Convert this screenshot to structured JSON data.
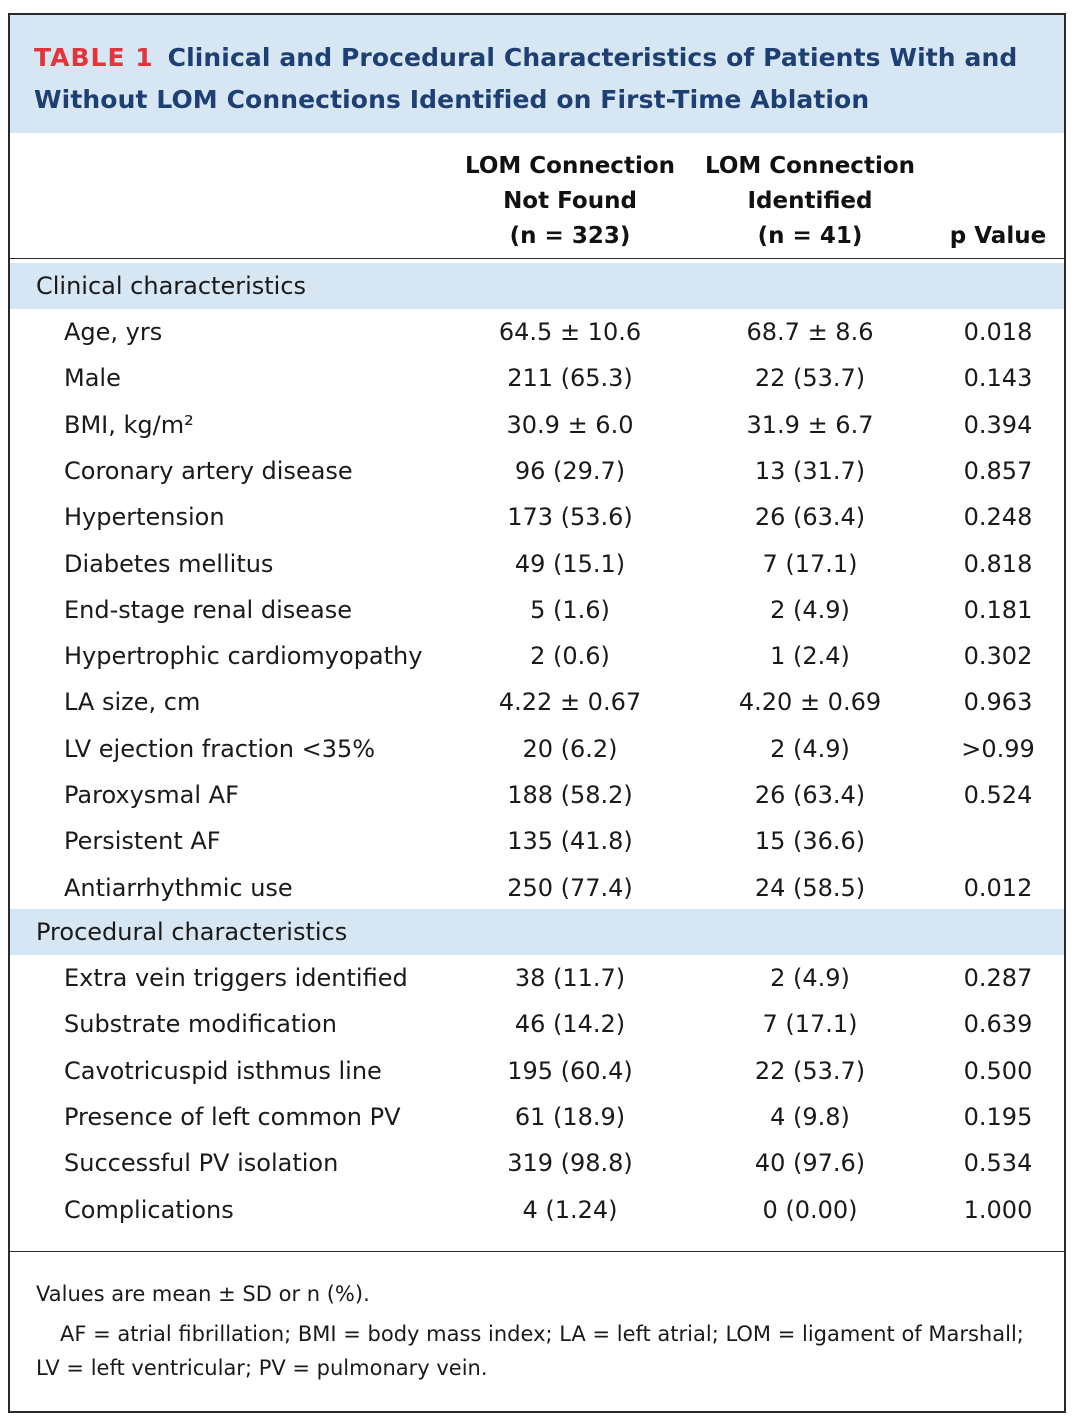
{
  "title": {
    "label": "TABLE 1",
    "text": "Clinical and Procedural Characteristics of Patients With and Without LOM Connections Identified on First-Time Ablation"
  },
  "columns": {
    "not_found": [
      "LOM Connection",
      "Not Found",
      "(n = 323)"
    ],
    "identified": [
      "LOM Connection",
      "Identified",
      "(n = 41)"
    ],
    "p_value": "p Value"
  },
  "sections": [
    {
      "title": "Clinical characteristics",
      "rows": [
        {
          "label": "Age, yrs",
          "not_found": "64.5 ± 10.6",
          "identified": "68.7 ± 8.6",
          "p": "0.018"
        },
        {
          "label": "Male",
          "not_found": "211 (65.3)",
          "identified": "22 (53.7)",
          "p": "0.143"
        },
        {
          "label": "BMI, kg/m²",
          "not_found": "30.9 ± 6.0",
          "identified": "31.9 ± 6.7",
          "p": "0.394"
        },
        {
          "label": "Coronary artery disease",
          "not_found": "96 (29.7)",
          "identified": "13 (31.7)",
          "p": "0.857"
        },
        {
          "label": "Hypertension",
          "not_found": "173 (53.6)",
          "identified": "26 (63.4)",
          "p": "0.248"
        },
        {
          "label": "Diabetes mellitus",
          "not_found": "49 (15.1)",
          "identified": "7 (17.1)",
          "p": "0.818"
        },
        {
          "label": "End-stage renal disease",
          "not_found": "5 (1.6)",
          "identified": "2 (4.9)",
          "p": "0.181"
        },
        {
          "label": "Hypertrophic cardiomyopathy",
          "not_found": "2 (0.6)",
          "identified": "1 (2.4)",
          "p": "0.302"
        },
        {
          "label": "LA size, cm",
          "not_found": "4.22 ± 0.67",
          "identified": "4.20 ± 0.69",
          "p": "0.963"
        },
        {
          "label": "LV ejection fraction <35%",
          "not_found": "20 (6.2)",
          "identified": "2 (4.9)",
          "p": ">0.99"
        },
        {
          "label": "Paroxysmal AF",
          "not_found": "188 (58.2)",
          "identified": "26 (63.4)",
          "p": "0.524"
        },
        {
          "label": "Persistent AF",
          "not_found": "135 (41.8)",
          "identified": "15 (36.6)",
          "p": ""
        },
        {
          "label": "Antiarrhythmic use",
          "not_found": "250 (77.4)",
          "identified": "24 (58.5)",
          "p": "0.012"
        }
      ]
    },
    {
      "title": "Procedural characteristics",
      "rows": [
        {
          "label": "Extra vein triggers identified",
          "not_found": "38 (11.7)",
          "identified": "2 (4.9)",
          "p": "0.287"
        },
        {
          "label": "Substrate modification",
          "not_found": "46 (14.2)",
          "identified": "7 (17.1)",
          "p": "0.639"
        },
        {
          "label": "Cavotricuspid isthmus line",
          "not_found": "195 (60.4)",
          "identified": "22 (53.7)",
          "p": "0.500"
        },
        {
          "label": "Presence of left common PV",
          "not_found": "61 (18.9)",
          "identified": "4 (9.8)",
          "p": "0.195"
        },
        {
          "label": "Successful PV isolation",
          "not_found": "319 (98.8)",
          "identified": "40 (97.6)",
          "p": "0.534"
        },
        {
          "label": "Complications",
          "not_found": "4 (1.24)",
          "identified": "0 (0.00)",
          "p": "1.000"
        }
      ]
    }
  ],
  "footnotes": [
    "Values are mean ± SD or n (%).",
    "AF = atrial fibrillation; BMI = body mass index; LA = left atrial; LOM = ligament of Marshall; LV = left ventricular; PV = pulmonary vein."
  ]
}
